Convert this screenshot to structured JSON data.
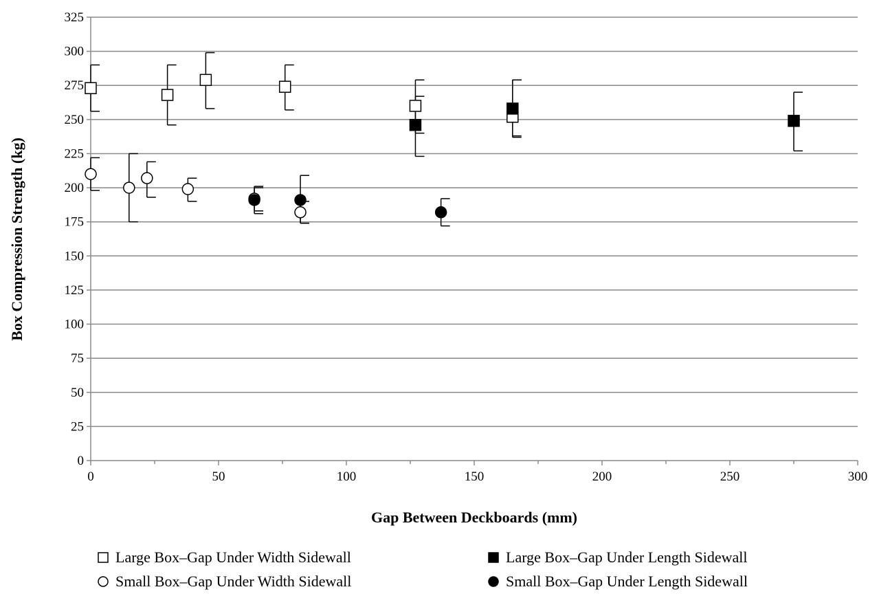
{
  "chart_data": {
    "type": "scatter",
    "title": "",
    "xlabel": "Gap Between Deckboards (mm)",
    "ylabel": "Box Compression Strength (kg)",
    "xlim": [
      0,
      300
    ],
    "ylim": [
      0,
      325
    ],
    "xticks": [
      0,
      50,
      100,
      150,
      200,
      250,
      300
    ],
    "yticks": [
      0,
      25,
      50,
      75,
      100,
      125,
      150,
      175,
      200,
      225,
      250,
      275,
      300,
      325
    ],
    "grid": "horizontal",
    "legend_position": "bottom",
    "error_bars": true,
    "series": [
      {
        "name": "Large Box–Gap Under Width Sidewall",
        "marker": "square-open",
        "points": [
          {
            "x": 0,
            "y": 273,
            "lo": 256,
            "hi": 290
          },
          {
            "x": 30,
            "y": 268,
            "lo": 246,
            "hi": 290
          },
          {
            "x": 45,
            "y": 279,
            "lo": 258,
            "hi": 299
          },
          {
            "x": 76,
            "y": 274,
            "lo": 257,
            "hi": 290
          },
          {
            "x": 127,
            "y": 260,
            "lo": 240,
            "hi": 279
          },
          {
            "x": 165,
            "y": 252,
            "lo": 237,
            "hi": 279
          }
        ]
      },
      {
        "name": "Large Box–Gap Under Length Sidewall",
        "marker": "square-filled",
        "points": [
          {
            "x": 127,
            "y": 246,
            "lo": 223,
            "hi": 267
          },
          {
            "x": 165,
            "y": 258,
            "lo": 238,
            "hi": 279
          },
          {
            "x": 275,
            "y": 249,
            "lo": 227,
            "hi": 270
          }
        ]
      },
      {
        "name": "Small Box–Gap Under Width Sidewall",
        "marker": "circle-open",
        "points": [
          {
            "x": 0,
            "y": 210,
            "lo": 198,
            "hi": 222
          },
          {
            "x": 15,
            "y": 200,
            "lo": 175,
            "hi": 225
          },
          {
            "x": 22,
            "y": 207,
            "lo": 193,
            "hi": 219
          },
          {
            "x": 38,
            "y": 199,
            "lo": 190,
            "hi": 207
          },
          {
            "x": 64,
            "y": 192,
            "lo": 181,
            "hi": 200
          },
          {
            "x": 82,
            "y": 182,
            "lo": 174,
            "hi": 190
          }
        ]
      },
      {
        "name": "Small Box–Gap Under Length Sidewall",
        "marker": "circle-filled",
        "points": [
          {
            "x": 64,
            "y": 191,
            "lo": 183,
            "hi": 201
          },
          {
            "x": 82,
            "y": 191,
            "lo": 174,
            "hi": 209
          },
          {
            "x": 137,
            "y": 182,
            "lo": 172,
            "hi": 192
          }
        ]
      }
    ]
  }
}
